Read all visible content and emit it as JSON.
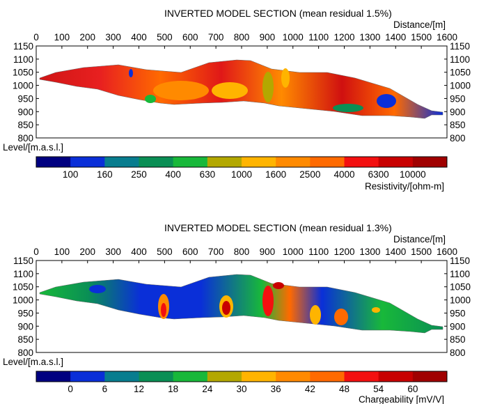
{
  "panels": [
    {
      "title": "INVERTED MODEL SECTION (mean residual 1.5%)",
      "x_axis_label": "Distance/[m]",
      "y_axis_label": "Level/[m.a.s.l.]",
      "x_ticks": [
        "0",
        "100",
        "200",
        "300",
        "400",
        "500",
        "600",
        "700",
        "800",
        "900",
        "1000",
        "1100",
        "1200",
        "1300",
        "1400",
        "1500",
        "1600"
      ],
      "y_ticks": [
        "1150",
        "1100",
        "1050",
        "1000",
        "950",
        "900",
        "850",
        "800"
      ],
      "colorbar_label": "Resistivity/[ohm-m]",
      "colorbar_ticks": [
        "100",
        "160",
        "250",
        "400",
        "630",
        "1000",
        "1600",
        "2500",
        "4000",
        "6300",
        "10000"
      ]
    },
    {
      "title": "INVERTED MODEL SECTION (mean residual 1.3%)",
      "x_axis_label": "Distance/[m]",
      "y_axis_label": "Level/[m.a.s.l.]",
      "x_ticks": [
        "0",
        "100",
        "200",
        "300",
        "400",
        "500",
        "600",
        "700",
        "800",
        "900",
        "1000",
        "1100",
        "1200",
        "1300",
        "1400",
        "1500",
        "1600"
      ],
      "y_ticks": [
        "1150",
        "1100",
        "1050",
        "1000",
        "950",
        "900",
        "850",
        "800"
      ],
      "colorbar_label": "Chargeability [mV/V]",
      "colorbar_ticks": [
        "0",
        "6",
        "12",
        "18",
        "24",
        "30",
        "36",
        "42",
        "48",
        "54",
        "60"
      ]
    }
  ],
  "colors": {
    "scale": [
      "#000080",
      "#0a2fd8",
      "#087d8f",
      "#0a8f55",
      "#18b83a",
      "#b3a800",
      "#ffb400",
      "#ff8a00",
      "#ff6a00",
      "#f31010",
      "#c80000",
      "#a00000"
    ]
  }
}
